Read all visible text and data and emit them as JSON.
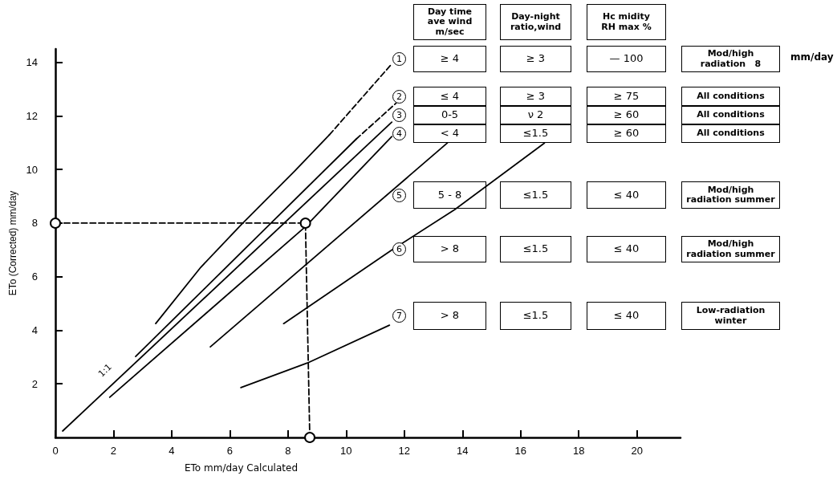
{
  "chart_data": {
    "type": "line",
    "xlabel": "ETo mm/day Calculated",
    "ylabel": "ETo (Corrected) mm/day",
    "xlim": [
      0,
      21.5
    ],
    "xticks": [
      0,
      2,
      4,
      6,
      8,
      10,
      12,
      14,
      16,
      18,
      20
    ],
    "ylim": [
      0,
      14.5
    ],
    "yticks": [
      2,
      4,
      6,
      8,
      10,
      12,
      14
    ],
    "grid": false,
    "legend": "right",
    "marker": "none",
    "line_style": "solid",
    "series": [
      {
        "name": "1",
        "color": "#000000",
        "x": [
          3.45,
          5.0,
          6.38,
          8.23,
          9.42
        ],
        "values": [
          4.25,
          6.35,
          7.93,
          9.94,
          11.29
        ]
      },
      {
        "color": "#000000",
        "line_style": "dashed",
        "x": [
          9.42,
          11.55
        ],
        "values": [
          11.29,
          13.92
        ]
      },
      {
        "name": "2",
        "color": "#000000",
        "x": [
          2.76,
          10.34
        ],
        "values": [
          3.02,
          11.13
        ]
      },
      {
        "color": "#000000",
        "line_style": "dashed",
        "x": [
          10.34,
          11.72
        ],
        "values": [
          11.13,
          12.48
        ]
      },
      {
        "name": "3",
        "color": "#000000",
        "x": [
          0.25,
          11.57
        ],
        "values": [
          0.24,
          11.77
        ]
      },
      {
        "name": "4",
        "color": "#000000",
        "x": [
          1.87,
          8.6,
          11.57
        ],
        "values": [
          1.5,
          7.87,
          11.23
        ]
      },
      {
        "name": "5",
        "color": "#000000",
        "x": [
          5.33,
          13.48
        ],
        "values": [
          3.38,
          10.99
        ]
      },
      {
        "name": "6",
        "color": "#000000",
        "x": [
          7.85,
          11.63,
          13.73,
          16.82
        ],
        "values": [
          4.25,
          7.04,
          8.5,
          10.99
        ]
      },
      {
        "name": "7",
        "color": "#000000",
        "x": [
          6.38,
          8.67,
          11.49
        ],
        "values": [
          1.86,
          2.78,
          4.19
        ]
      },
      {
        "color": "#000000",
        "line_style": "dashed",
        "marker": "circle",
        "x": [
          0,
          8.6,
          8.75
        ],
        "values": [
          8,
          8,
          0
        ]
      }
    ],
    "annotations": [
      "Day time\nave wind\nm/sec",
      "Day-night\nratio,wind",
      "Hc midity\nRH max %",
      "≥ 4",
      "≥ 3",
      "— 100",
      "Mod/high\nradiation   8",
      "≤ 4",
      "≥ 3",
      "≥ 75",
      "All conditions",
      "0-5",
      "ν 2",
      "≥ 60",
      "All conditions",
      "< 4",
      "≤1.5",
      "≥ 60",
      "All conditions",
      "5 - 8",
      "≤1.5",
      "≤ 40",
      "Mod/high\nradiation summer",
      "> 8",
      "≤1.5",
      "≤ 40",
      "Mod/high\nradiation summer",
      "> 8",
      "≤1.5",
      "≤ 40",
      "Low-radiation\nwinter",
      "mm/day",
      "1:1"
    ]
  }
}
